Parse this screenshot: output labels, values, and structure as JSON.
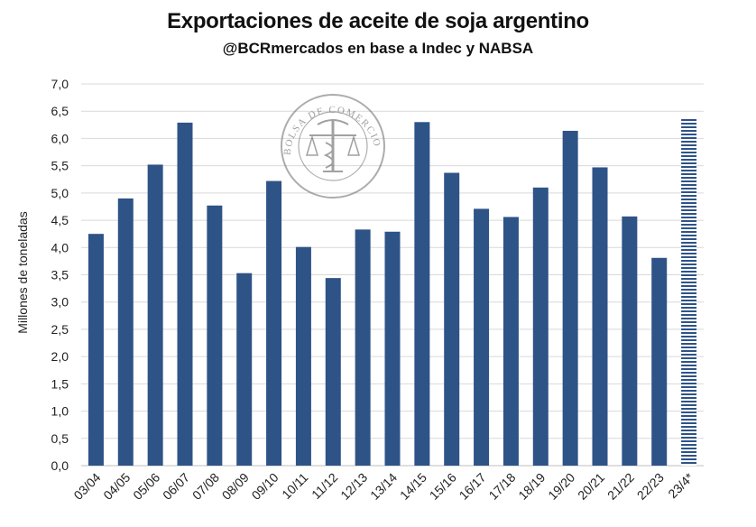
{
  "chart_data": {
    "type": "bar",
    "title": "Exportaciones de aceite de soja argentino",
    "subtitle": "@BCRmercados en base a Indec y NABSA",
    "ylabel": "Millones de toneladas",
    "xlabel": "",
    "ylim": [
      0,
      7
    ],
    "yticks": [
      "0,0",
      "0,5",
      "1,0",
      "1,5",
      "2,0",
      "2,5",
      "3,0",
      "3,5",
      "4,0",
      "4,5",
      "5,0",
      "5,5",
      "6,0",
      "6,5",
      "7,0"
    ],
    "grid": true,
    "categories": [
      "03/04",
      "04/05",
      "05/06",
      "06/07",
      "07/08",
      "08/09",
      "09/10",
      "10/11",
      "11/12",
      "12/13",
      "13/14",
      "14/15",
      "15/16",
      "16/17",
      "17/18",
      "18/19",
      "19/20",
      "20/21",
      "21/22",
      "22/23",
      "23/4*"
    ],
    "values": [
      4.25,
      4.9,
      5.52,
      6.29,
      4.77,
      3.53,
      5.22,
      4.01,
      3.44,
      4.33,
      4.29,
      6.3,
      5.37,
      4.71,
      4.56,
      5.1,
      6.14,
      5.47,
      4.57,
      3.81,
      6.37
    ],
    "projected": [
      false,
      false,
      false,
      false,
      false,
      false,
      false,
      false,
      false,
      false,
      false,
      false,
      false,
      false,
      false,
      false,
      false,
      false,
      false,
      false,
      true
    ],
    "colors": {
      "bar": "#2e5387",
      "projected": "#2e5387",
      "grid": "#d9d9d9"
    },
    "watermark": "BOLSA DE COMERCIO DE ROSARIO"
  }
}
